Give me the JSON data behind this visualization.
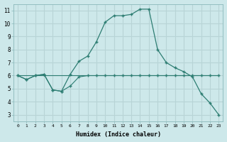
{
  "xlabel": "Humidex (Indice chaleur)",
  "background_color": "#cde8ea",
  "grid_color": "#b8d4d6",
  "line_color": "#2d7d72",
  "xlim": [
    -0.5,
    23.5
  ],
  "ylim": [
    2.5,
    11.5
  ],
  "xticks": [
    0,
    1,
    2,
    3,
    4,
    5,
    6,
    7,
    8,
    9,
    10,
    11,
    12,
    13,
    14,
    15,
    16,
    17,
    18,
    19,
    20,
    21,
    22,
    23
  ],
  "yticks": [
    3,
    4,
    5,
    6,
    7,
    8,
    9,
    10,
    11
  ],
  "line1_x": [
    0,
    1,
    2,
    3,
    4,
    5,
    6,
    7,
    8,
    9,
    10,
    11,
    12,
    13,
    14,
    15,
    16,
    17,
    18,
    19,
    20,
    21,
    22,
    23
  ],
  "line1_y": [
    6.0,
    5.7,
    6.0,
    6.1,
    4.9,
    4.8,
    6.1,
    7.1,
    7.5,
    8.6,
    10.1,
    10.6,
    10.6,
    10.7,
    11.1,
    11.1,
    8.0,
    7.0,
    6.6,
    6.3,
    5.9,
    4.6,
    3.9,
    3.0
  ],
  "line2_x": [
    0,
    1,
    2,
    3,
    4,
    5,
    6,
    7,
    8,
    9,
    10,
    11,
    12,
    13,
    14,
    15,
    16,
    17,
    18,
    19,
    20,
    21,
    22,
    23
  ],
  "line2_y": [
    6.0,
    5.7,
    6.0,
    6.1,
    4.9,
    4.8,
    5.2,
    5.9,
    6.0,
    6.0,
    6.0,
    6.0,
    6.0,
    6.0,
    6.0,
    6.0,
    6.0,
    6.0,
    6.0,
    6.0,
    6.0,
    6.0,
    6.0,
    6.0
  ],
  "line3_x": [
    0,
    23
  ],
  "line3_y": [
    6.0,
    6.0
  ]
}
